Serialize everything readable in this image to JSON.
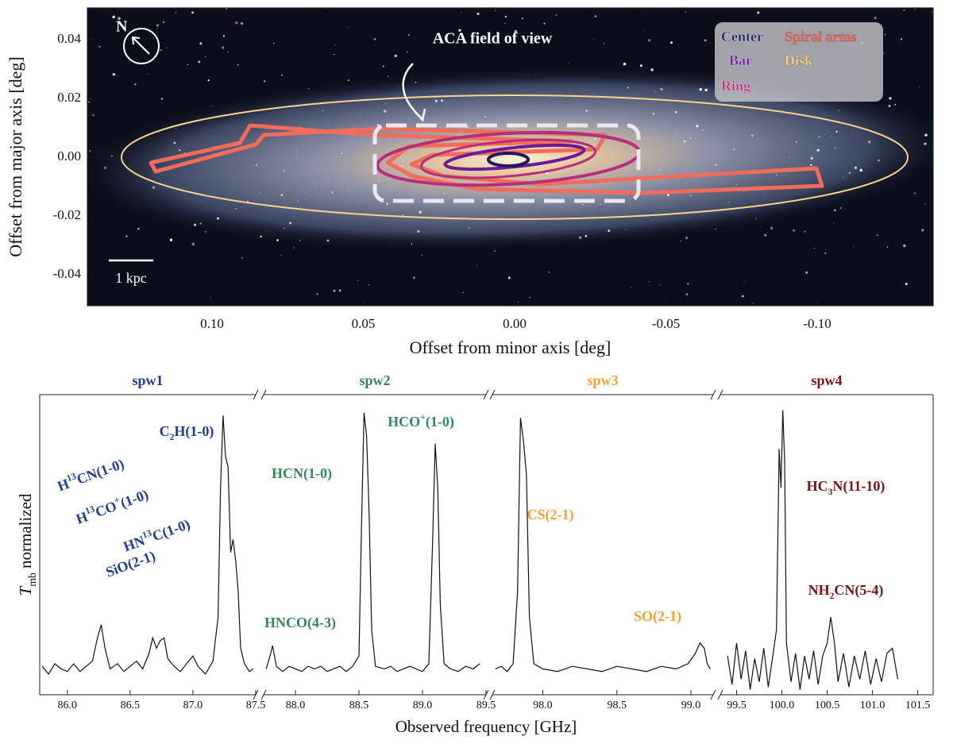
{
  "chart_data": [
    {
      "type": "image",
      "xlabel": "Offset from minor axis [deg]",
      "ylabel": "Offset from major axis [deg]",
      "xlim": [
        0.1412,
        -0.1383
      ],
      "ylim": [
        -0.0505,
        0.0508
      ],
      "xticks": [
        {
          "value": 0.1,
          "label": "0.10"
        },
        {
          "value": 0.05,
          "label": "0.05"
        },
        {
          "value": 0,
          "label": "0.00"
        },
        {
          "value": -0.05,
          "label": "-0.05"
        },
        {
          "value": -0.1,
          "label": "-0.10"
        }
      ],
      "yticks": [
        0.04,
        0.02,
        {
          "value": 0,
          "label": "0.00"
        },
        -0.02,
        -0.04
      ],
      "annotations": [
        "N",
        "ACA field of view",
        "1 kpc"
      ],
      "series": [
        {
          "name": "Center",
          "color": "#1c1c5e"
        },
        {
          "name": "Bar",
          "color": "#6a1b9a"
        },
        {
          "name": "Ring",
          "color": "#b4307c"
        },
        {
          "name": "Spiral arms",
          "color": "#f26c5c"
        },
        {
          "name": "Disk",
          "color": "#f7d38c"
        }
      ]
    },
    {
      "type": "spectrum",
      "xlabel": "Observed frequency [GHz]",
      "ylabel": [
        "T",
        "mb",
        " normalized"
      ],
      "ylim": [
        -0.1,
        1.06
      ],
      "line_color": "#111111",
      "panels": [
        {
          "name": "spw1",
          "color": "#1b3f8f",
          "xlim": [
            85.78,
            87.5
          ],
          "xticks": [
            {
              "value": 86,
              "label": "86.0"
            },
            86.5,
            {
              "value": 87,
              "label": "87.0"
            },
            87.5
          ],
          "x": [
            85.8,
            85.85,
            85.9,
            85.95,
            86.0,
            86.05,
            86.1,
            86.15,
            86.2,
            86.24,
            86.27,
            86.3,
            86.34,
            86.4,
            86.45,
            86.5,
            86.55,
            86.6,
            86.65,
            86.68,
            86.71,
            86.74,
            86.77,
            86.8,
            86.85,
            86.9,
            86.95,
            87.0,
            87.04,
            87.1,
            87.16,
            87.2,
            87.22,
            87.24,
            87.26,
            87.28,
            87.3,
            87.32,
            87.34,
            87.36,
            87.38,
            87.41,
            87.45,
            87.48
          ],
          "values": [
            0.01,
            -0.02,
            0.02,
            0.0,
            -0.01,
            0.02,
            -0.01,
            0.01,
            0.03,
            0.12,
            0.17,
            0.08,
            0.0,
            0.02,
            -0.01,
            0.01,
            0.03,
            0.0,
            0.06,
            0.12,
            0.08,
            0.11,
            0.12,
            0.04,
            0.01,
            -0.01,
            0.02,
            0.05,
            0.01,
            -0.02,
            0.03,
            0.2,
            0.7,
            0.98,
            0.82,
            0.78,
            0.45,
            0.5,
            0.42,
            0.3,
            0.08,
            0.02,
            -0.01,
            0.0
          ]
        },
        {
          "name": "spw2",
          "color": "#2e8b57",
          "xlim": [
            87.75,
            89.5
          ],
          "xticks": [
            {
              "value": 88,
              "label": "88.0"
            },
            88.5,
            {
              "value": 89,
              "label": "89.0"
            },
            89.5
          ],
          "x": [
            87.77,
            87.8,
            87.82,
            87.85,
            87.9,
            87.95,
            88.0,
            88.05,
            88.1,
            88.15,
            88.2,
            88.25,
            88.3,
            88.35,
            88.4,
            88.45,
            88.5,
            88.52,
            88.54,
            88.56,
            88.58,
            88.6,
            88.63,
            88.7,
            88.75,
            88.8,
            88.85,
            88.9,
            88.95,
            89.0,
            89.05,
            89.08,
            89.1,
            89.12,
            89.14,
            89.17,
            89.22,
            89.28,
            89.34,
            89.4,
            89.45
          ],
          "values": [
            0.0,
            0.05,
            0.09,
            0.01,
            -0.01,
            0.01,
            0.0,
            -0.01,
            0.01,
            0.0,
            0.01,
            -0.01,
            0.0,
            0.01,
            -0.01,
            0.01,
            0.05,
            0.55,
            0.99,
            0.9,
            0.6,
            0.15,
            0.01,
            0.0,
            0.01,
            -0.01,
            0.0,
            0.01,
            0.0,
            -0.01,
            0.02,
            0.5,
            0.87,
            0.7,
            0.25,
            0.02,
            0.0,
            -0.01,
            0.01,
            0.0,
            0.02
          ]
        },
        {
          "name": "spw3",
          "color": "#f5a030",
          "xlim": [
            97.66,
            99.15
          ],
          "xticks": [
            {
              "value": 98,
              "label": "98.0"
            },
            98.5,
            {
              "value": 99,
              "label": "99.0"
            }
          ],
          "x": [
            97.68,
            97.72,
            97.76,
            97.8,
            97.83,
            97.85,
            97.87,
            97.89,
            97.91,
            97.94,
            98.0,
            98.1,
            98.2,
            98.3,
            98.4,
            98.5,
            98.6,
            98.7,
            98.8,
            98.9,
            98.98,
            99.03,
            99.06,
            99.09,
            99.11,
            99.13
          ],
          "values": [
            0.0,
            0.01,
            -0.01,
            0.02,
            0.3,
            0.97,
            0.88,
            0.75,
            0.2,
            0.02,
            0.0,
            -0.01,
            0.01,
            0.0,
            -0.01,
            0.01,
            0.0,
            -0.01,
            0.01,
            0.0,
            0.02,
            0.06,
            0.1,
            0.08,
            0.02,
            0.0
          ]
        },
        {
          "name": "spw4",
          "color": "#7a1414",
          "xlim": [
            99.32,
            101.67
          ],
          "xticks": [
            99.5,
            {
              "value": 100,
              "label": "100.0"
            },
            100.5,
            {
              "value": 101,
              "label": "101.0"
            },
            101.5
          ],
          "x": [
            99.4,
            99.45,
            99.5,
            99.55,
            99.6,
            99.65,
            99.7,
            99.75,
            99.8,
            99.85,
            99.9,
            99.94,
            99.97,
            99.99,
            100.01,
            100.03,
            100.05,
            100.1,
            100.15,
            100.2,
            100.25,
            100.3,
            100.35,
            100.4,
            100.45,
            100.5,
            100.54,
            100.58,
            100.62,
            100.68,
            100.74,
            100.8,
            100.86,
            100.92,
            100.98,
            101.04,
            101.1,
            101.16,
            101.22,
            101.28
          ],
          "values": [
            0.05,
            -0.06,
            0.1,
            -0.04,
            0.07,
            -0.08,
            0.04,
            -0.05,
            0.08,
            -0.07,
            0.05,
            0.15,
            0.85,
            0.7,
            1.0,
            0.8,
            0.1,
            -0.05,
            0.06,
            -0.08,
            0.05,
            -0.04,
            0.07,
            -0.06,
            0.05,
            0.1,
            0.2,
            0.1,
            -0.05,
            0.06,
            -0.07,
            0.05,
            -0.04,
            0.07,
            -0.06,
            0.04,
            -0.05,
            0.06,
            0.08,
            -0.04
          ]
        }
      ],
      "annotations": [
        {
          "parts": [
            "C",
            "2",
            "H(1-0)"
          ],
          "script": "sub",
          "color": "#1b3f8f"
        },
        {
          "parts": [
            "H",
            "13",
            "CN(1-0)"
          ],
          "script": "sup",
          "color": "#1b3f8f"
        },
        {
          "parts": [
            "H",
            "13",
            "CO",
            "+",
            "(1-0)"
          ],
          "script": "sup",
          "color": "#1b3f8f"
        },
        {
          "parts": [
            "HN",
            "13",
            "C(1-0)"
          ],
          "script": "sup",
          "color": "#1b3f8f"
        },
        {
          "parts": [
            "SiO(2-1)"
          ],
          "script": "sup",
          "color": "#1b3f8f"
        },
        {
          "parts": [
            "HCN(1-0)"
          ],
          "script": "sup",
          "color": "#2e8b57"
        },
        {
          "parts": [
            "HCO",
            "+",
            "(1-0)"
          ],
          "script": "sup",
          "color": "#2e8b57"
        },
        {
          "parts": [
            "HNCO(4-3)"
          ],
          "script": "sup",
          "color": "#2e8b57"
        },
        {
          "parts": [
            "CS(2-1)"
          ],
          "script": "sup",
          "color": "#f5a030"
        },
        {
          "parts": [
            "SO(2-1)"
          ],
          "script": "sup",
          "color": "#f5a030"
        },
        {
          "parts": [
            "HC",
            "3",
            "N(11-10)"
          ],
          "script": "sub",
          "color": "#7a1414"
        },
        {
          "parts": [
            "NH",
            "2",
            "CN(5-4)"
          ],
          "script": "sub",
          "color": "#7a1414"
        }
      ]
    }
  ]
}
